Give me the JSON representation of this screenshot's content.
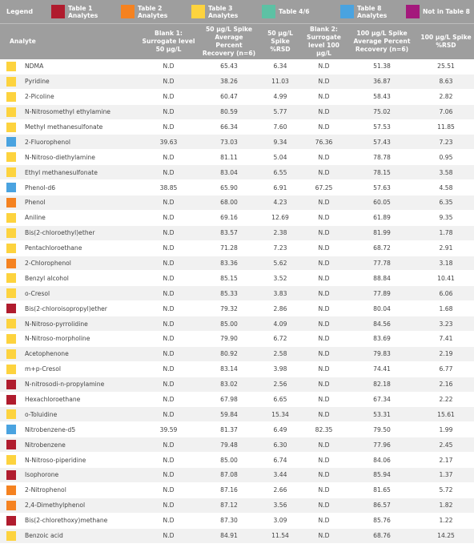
{
  "legend": {
    "title": "Legend",
    "items": [
      {
        "label_l1": "Table 1",
        "label_l2": "Analytes",
        "color": "#b01c2e"
      },
      {
        "label_l1": "Table 2",
        "label_l2": "Analytes",
        "color": "#f58220"
      },
      {
        "label_l1": "Table 3",
        "label_l2": "Analytes",
        "color": "#fdd33e"
      },
      {
        "label_l1": "Table 4/6",
        "label_l2": "",
        "color": "#5dc1a4"
      },
      {
        "label_l1": "Table 8",
        "label_l2": "Analytes",
        "color": "#4aa3e0"
      },
      {
        "label_l1": "Not in Table 8",
        "label_l2": "",
        "color": "#a4197c"
      }
    ]
  },
  "header": {
    "analyte": "Analyte",
    "col1": "Blank 1: Surrogate level 50 µg/L",
    "col2": "50 µg/L Spike Average Percent Recovery (n=6)",
    "col3": "50 µg/L Spike %RSD",
    "col4": "Blank 2: Surrogate level 100 µg/L",
    "col5": "100 µg/L Spike Average Percent Recovery (n=6)",
    "col6": "100 µg/L Spike %RSD"
  },
  "colors": {
    "t1": "#b01c2e",
    "t2": "#f58220",
    "t3": "#fdd33e",
    "t8": "#4aa3e0"
  },
  "rows": [
    {
      "name": "NDMA",
      "cat": "t3",
      "b1": "N.D",
      "r50": "65.43",
      "rsd50": "6.34",
      "b2": "N.D",
      "r100": "51.38",
      "rsd100": "25.51"
    },
    {
      "name": "Pyridine",
      "cat": "t3",
      "b1": "N.D",
      "r50": "38.26",
      "rsd50": "11.03",
      "b2": "N.D",
      "r100": "36.87",
      "rsd100": "8.63"
    },
    {
      "name": "2-Picoline",
      "cat": "t3",
      "b1": "N.D",
      "r50": "60.47",
      "rsd50": "4.99",
      "b2": "N.D",
      "r100": "58.43",
      "rsd100": "2.82"
    },
    {
      "name": "N-Nitrosomethyl ethylamine",
      "cat": "t3",
      "b1": "N.D",
      "r50": "80.59",
      "rsd50": "5.77",
      "b2": "N.D",
      "r100": "75.02",
      "rsd100": "7.06"
    },
    {
      "name": "Methyl methanesulfonate",
      "cat": "t3",
      "b1": "N.D",
      "r50": "66.34",
      "rsd50": "7.60",
      "b2": "N.D",
      "r100": "57.53",
      "rsd100": "11.85"
    },
    {
      "name": "2-Fluorophenol",
      "cat": "t8",
      "b1": "39.63",
      "r50": "73.03",
      "rsd50": "9.34",
      "b2": "76.36",
      "r100": "57.43",
      "rsd100": "7.23"
    },
    {
      "name": "N-Nitroso-diethylamine",
      "cat": "t3",
      "b1": "N.D",
      "r50": "81.11",
      "rsd50": "5.04",
      "b2": "N.D",
      "r100": "78.78",
      "rsd100": "0.95"
    },
    {
      "name": "Ethyl methanesulfonate",
      "cat": "t3",
      "b1": "N.D",
      "r50": "83.04",
      "rsd50": "6.55",
      "b2": "N.D",
      "r100": "78.15",
      "rsd100": "3.58"
    },
    {
      "name": "Phenol-d6",
      "cat": "t8",
      "b1": "38.85",
      "r50": "65.90",
      "rsd50": "6.91",
      "b2": "67.25",
      "r100": "57.63",
      "rsd100": "4.58"
    },
    {
      "name": "Phenol",
      "cat": "t2",
      "b1": "N.D",
      "r50": "68.00",
      "rsd50": "4.23",
      "b2": "N.D",
      "r100": "60.05",
      "rsd100": "6.35"
    },
    {
      "name": "Aniline",
      "cat": "t3",
      "b1": "N.D",
      "r50": "69.16",
      "rsd50": "12.69",
      "b2": "N.D",
      "r100": "61.89",
      "rsd100": "9.35"
    },
    {
      "name": "Bis(2-chloroethyl)ether",
      "cat": "t3",
      "b1": "N.D",
      "r50": "83.57",
      "rsd50": "2.38",
      "b2": "N.D",
      "r100": "81.99",
      "rsd100": "1.78"
    },
    {
      "name": "Pentachloroethane",
      "cat": "t3",
      "b1": "N.D",
      "r50": "71.28",
      "rsd50": "7.23",
      "b2": "N.D",
      "r100": "68.72",
      "rsd100": "2.91"
    },
    {
      "name": "2-Chlorophenol",
      "cat": "t2",
      "b1": "N.D",
      "r50": "83.36",
      "rsd50": "5.62",
      "b2": "N.D",
      "r100": "77.78",
      "rsd100": "3.18"
    },
    {
      "name": "Benzyl alcohol",
      "cat": "t3",
      "b1": "N.D",
      "r50": "85.15",
      "rsd50": "3.52",
      "b2": "N.D",
      "r100": "88.84",
      "rsd100": "10.41"
    },
    {
      "name": "o-Cresol",
      "cat": "t3",
      "b1": "N.D",
      "r50": "85.33",
      "rsd50": "3.83",
      "b2": "N.D",
      "r100": "77.89",
      "rsd100": "6.06"
    },
    {
      "name": "Bis(2-chloroisopropyl)ether",
      "cat": "t1",
      "b1": "N.D",
      "r50": "79.32",
      "rsd50": "2.86",
      "b2": "N.D",
      "r100": "80.04",
      "rsd100": "1.68"
    },
    {
      "name": "N-Nitroso-pyrrolidine",
      "cat": "t3",
      "b1": "N.D",
      "r50": "85.00",
      "rsd50": "4.09",
      "b2": "N.D",
      "r100": "84.56",
      "rsd100": "3.23"
    },
    {
      "name": "N-Nitroso-morpholine",
      "cat": "t3",
      "b1": "N.D",
      "r50": "79.90",
      "rsd50": "6.72",
      "b2": "N.D",
      "r100": "83.69",
      "rsd100": "7.41"
    },
    {
      "name": "Acetophenone",
      "cat": "t3",
      "b1": "N.D",
      "r50": "80.92",
      "rsd50": "2.58",
      "b2": "N.D",
      "r100": "79.83",
      "rsd100": "2.19"
    },
    {
      "name": "m+p-Cresol",
      "cat": "t3",
      "b1": "N.D",
      "r50": "83.14",
      "rsd50": "3.98",
      "b2": "N.D",
      "r100": "74.41",
      "rsd100": "6.77"
    },
    {
      "name": "N-nitrosodi-n-propylamine",
      "cat": "t1",
      "b1": "N.D",
      "r50": "83.02",
      "rsd50": "2.56",
      "b2": "N.D",
      "r100": "82.18",
      "rsd100": "2.16"
    },
    {
      "name": "Hexachloroethane",
      "cat": "t1",
      "b1": "N.D",
      "r50": "67.98",
      "rsd50": "6.65",
      "b2": "N.D",
      "r100": "67.34",
      "rsd100": "2.22"
    },
    {
      "name": "o-Toluidine",
      "cat": "t3",
      "b1": "N.D",
      "r50": "59.84",
      "rsd50": "15.34",
      "b2": "N.D",
      "r100": "53.31",
      "rsd100": "15.61"
    },
    {
      "name": "Nitrobenzene-d5",
      "cat": "t8",
      "b1": "39.59",
      "r50": "81.37",
      "rsd50": "6.49",
      "b2": "82.35",
      "r100": "79.50",
      "rsd100": "1.99"
    },
    {
      "name": "Nitrobenzene",
      "cat": "t1",
      "b1": "N.D",
      "r50": "79.48",
      "rsd50": "6.30",
      "b2": "N.D",
      "r100": "77.96",
      "rsd100": "2.45"
    },
    {
      "name": "N-Nitroso-piperidine",
      "cat": "t3",
      "b1": "N.D",
      "r50": "85.00",
      "rsd50": "6.74",
      "b2": "N.D",
      "r100": "84.06",
      "rsd100": "2.17"
    },
    {
      "name": "Isophorone",
      "cat": "t1",
      "b1": "N.D",
      "r50": "87.08",
      "rsd50": "3.44",
      "b2": "N.D",
      "r100": "85.94",
      "rsd100": "1.37"
    },
    {
      "name": "2-Nitrophenol",
      "cat": "t2",
      "b1": "N.D",
      "r50": "87.16",
      "rsd50": "2.66",
      "b2": "N.D",
      "r100": "81.65",
      "rsd100": "5.72"
    },
    {
      "name": "2,4-Dimethylphenol",
      "cat": "t2",
      "b1": "N.D",
      "r50": "87.12",
      "rsd50": "3.56",
      "b2": "N.D",
      "r100": "86.57",
      "rsd100": "1.82"
    },
    {
      "name": "Bis(2-chlorethoxy)methane",
      "cat": "t1",
      "b1": "N.D",
      "r50": "87.30",
      "rsd50": "3.09",
      "b2": "N.D",
      "r100": "85.76",
      "rsd100": "1.22"
    },
    {
      "name": "Benzoic acid",
      "cat": "t3",
      "b1": "N.D",
      "r50": "84.91",
      "rsd50": "11.54",
      "b2": "N.D",
      "r100": "68.76",
      "rsd100": "14.25"
    }
  ]
}
